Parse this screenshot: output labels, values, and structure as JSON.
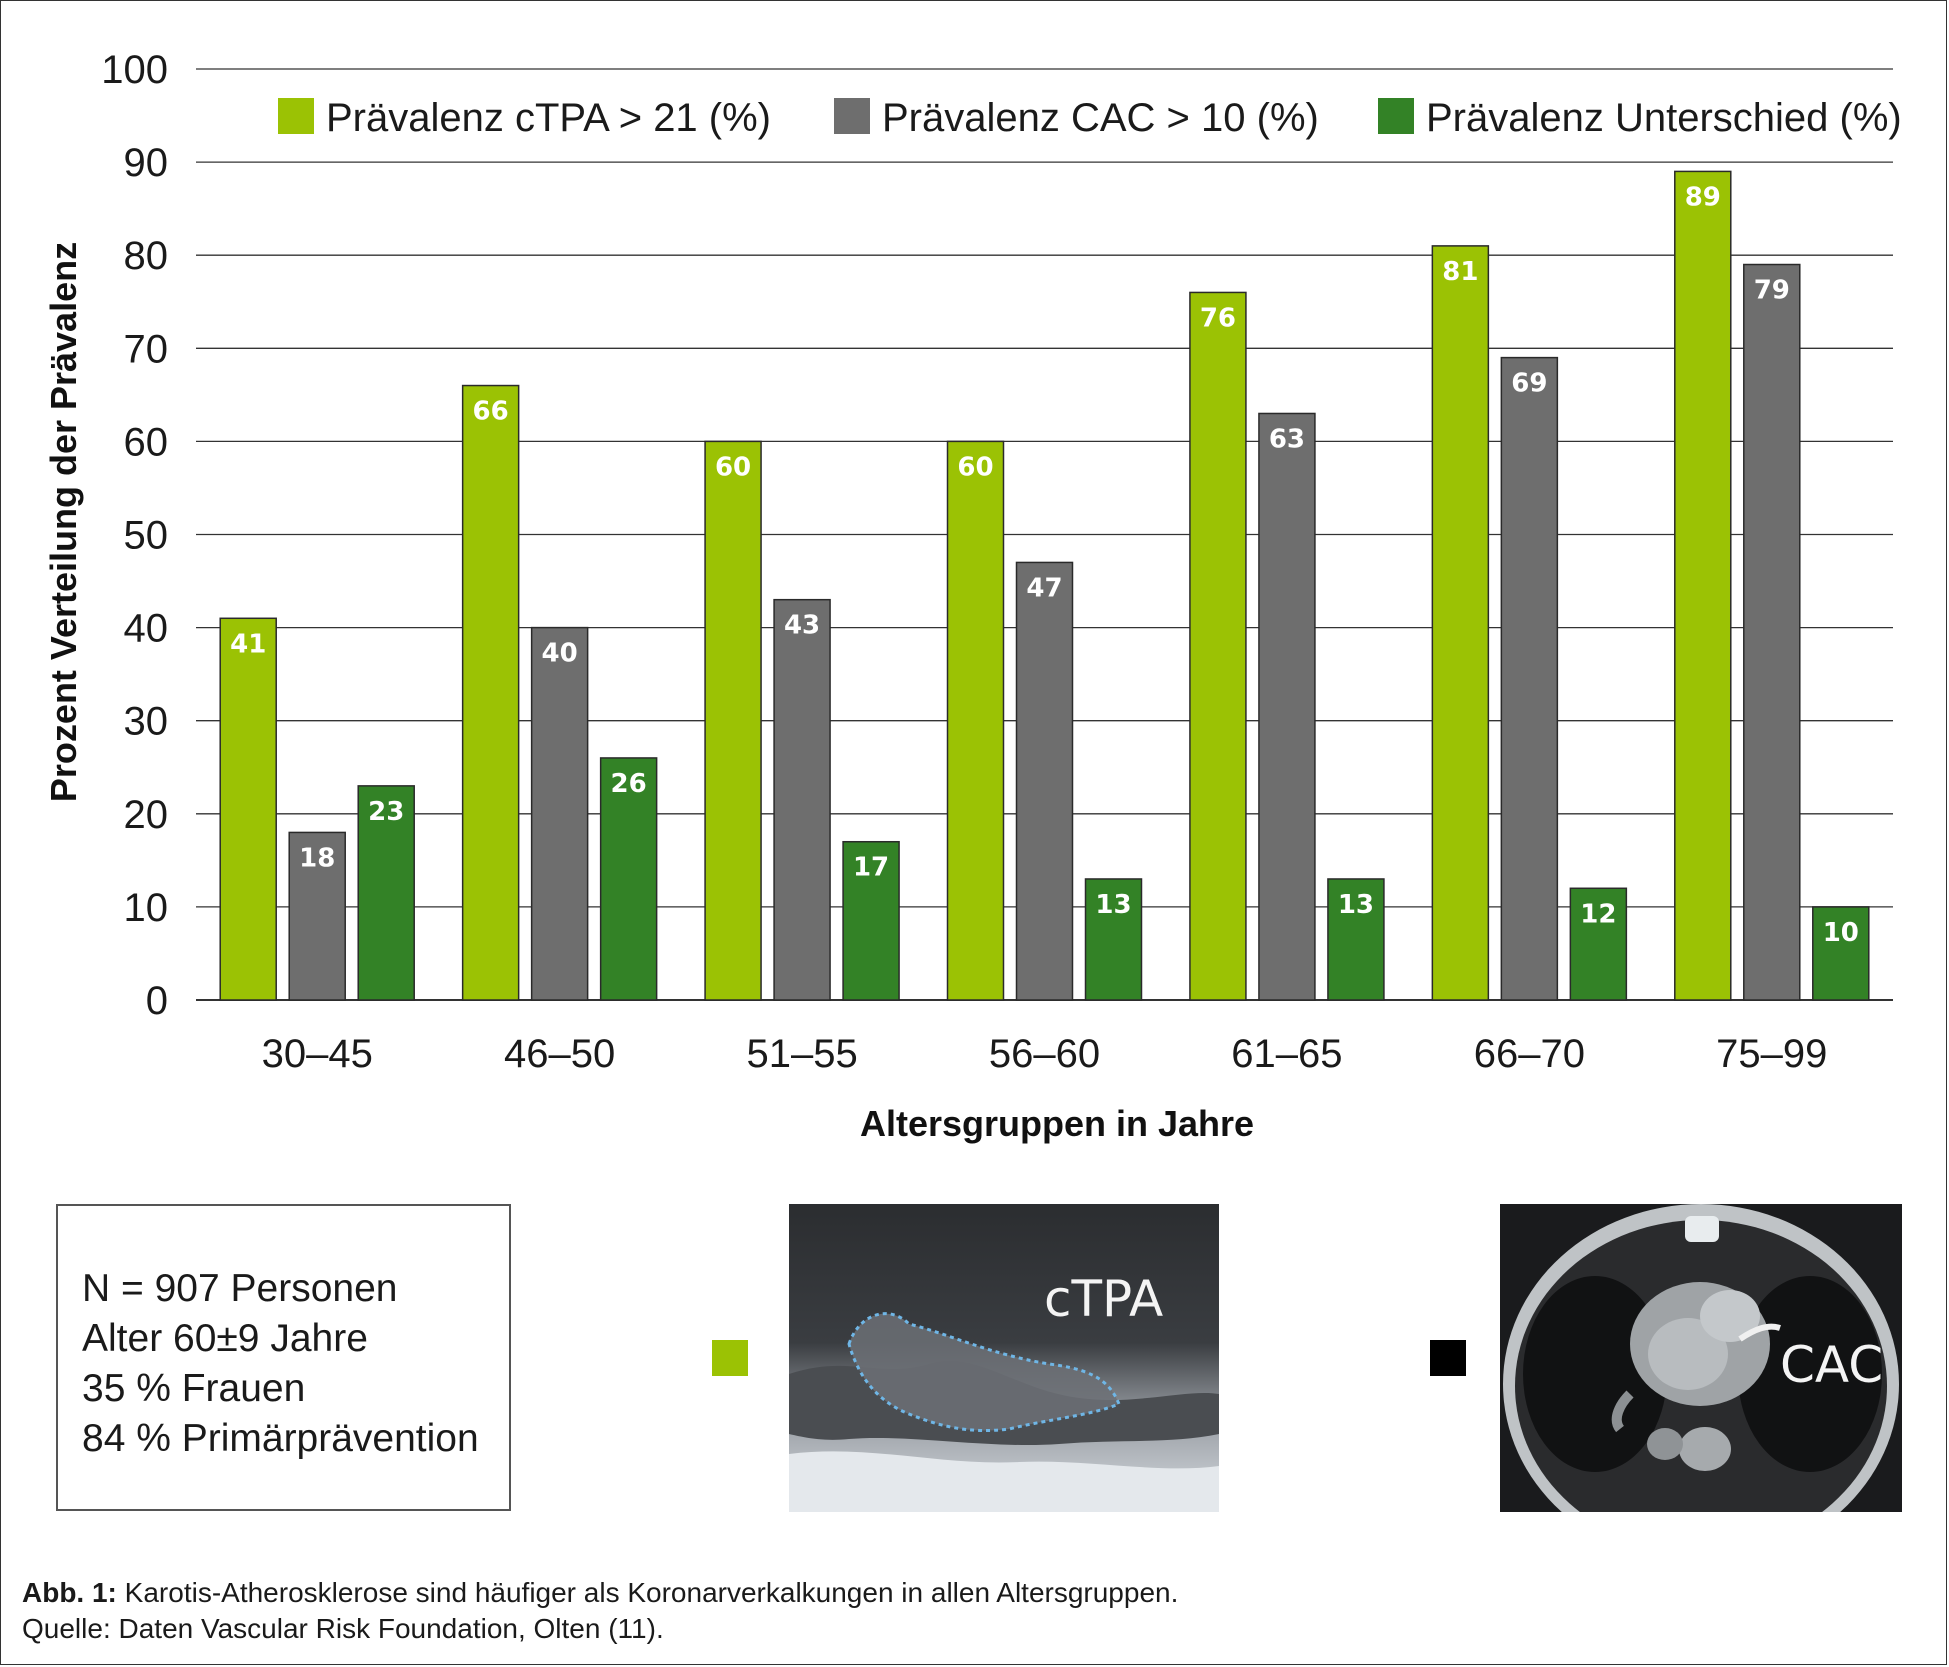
{
  "colors": {
    "ctpa": "#9bc204",
    "cac": "#6e6e6e",
    "diff": "#338226",
    "grid": "#333333"
  },
  "chart_data": {
    "type": "bar",
    "title": "",
    "xlabel": "Altersgruppen in Jahre",
    "ylabel": "Prozent Verteilung der Prävalenz",
    "ylim": [
      0,
      100
    ],
    "yticks": [
      0,
      10,
      20,
      30,
      40,
      50,
      60,
      70,
      80,
      90,
      100
    ],
    "grid": true,
    "legend_position": "top",
    "categories": [
      "30–45",
      "46–50",
      "51–55",
      "56–60",
      "61–65",
      "66–70",
      "75–99"
    ],
    "series": [
      {
        "name": "Prävalenz cTPA > 21 (%)",
        "color_key": "ctpa",
        "values": [
          41,
          66,
          60,
          60,
          76,
          81,
          89
        ]
      },
      {
        "name": "Prävalenz CAC > 10 (%)",
        "color_key": "cac",
        "values": [
          18,
          40,
          43,
          47,
          63,
          69,
          79
        ]
      },
      {
        "name": "Prävalenz Unterschied (%)",
        "color_key": "diff",
        "values": [
          23,
          26,
          17,
          13,
          13,
          12,
          10
        ]
      }
    ]
  },
  "stats": {
    "lines": [
      "N = 907 Personen",
      "Alter 60±9 Jahre",
      "35 % Frauen",
      "84 % Primärprävention"
    ]
  },
  "images": {
    "ctpa": {
      "label": "cTPA",
      "swatch_color": "#9bc204",
      "icon": "carotid-ultrasound-image"
    },
    "cac": {
      "label": "CAC",
      "swatch_color": "#000000",
      "icon": "cardiac-ct-image"
    }
  },
  "caption": {
    "bold": "Abb. 1:",
    "text": "Karotis-Atherosklerose sind häufiger als Koronarverkalkungen in allen Altersgruppen.",
    "source": "Quelle: Daten Vascular Risk Foundation, Olten (11)."
  }
}
